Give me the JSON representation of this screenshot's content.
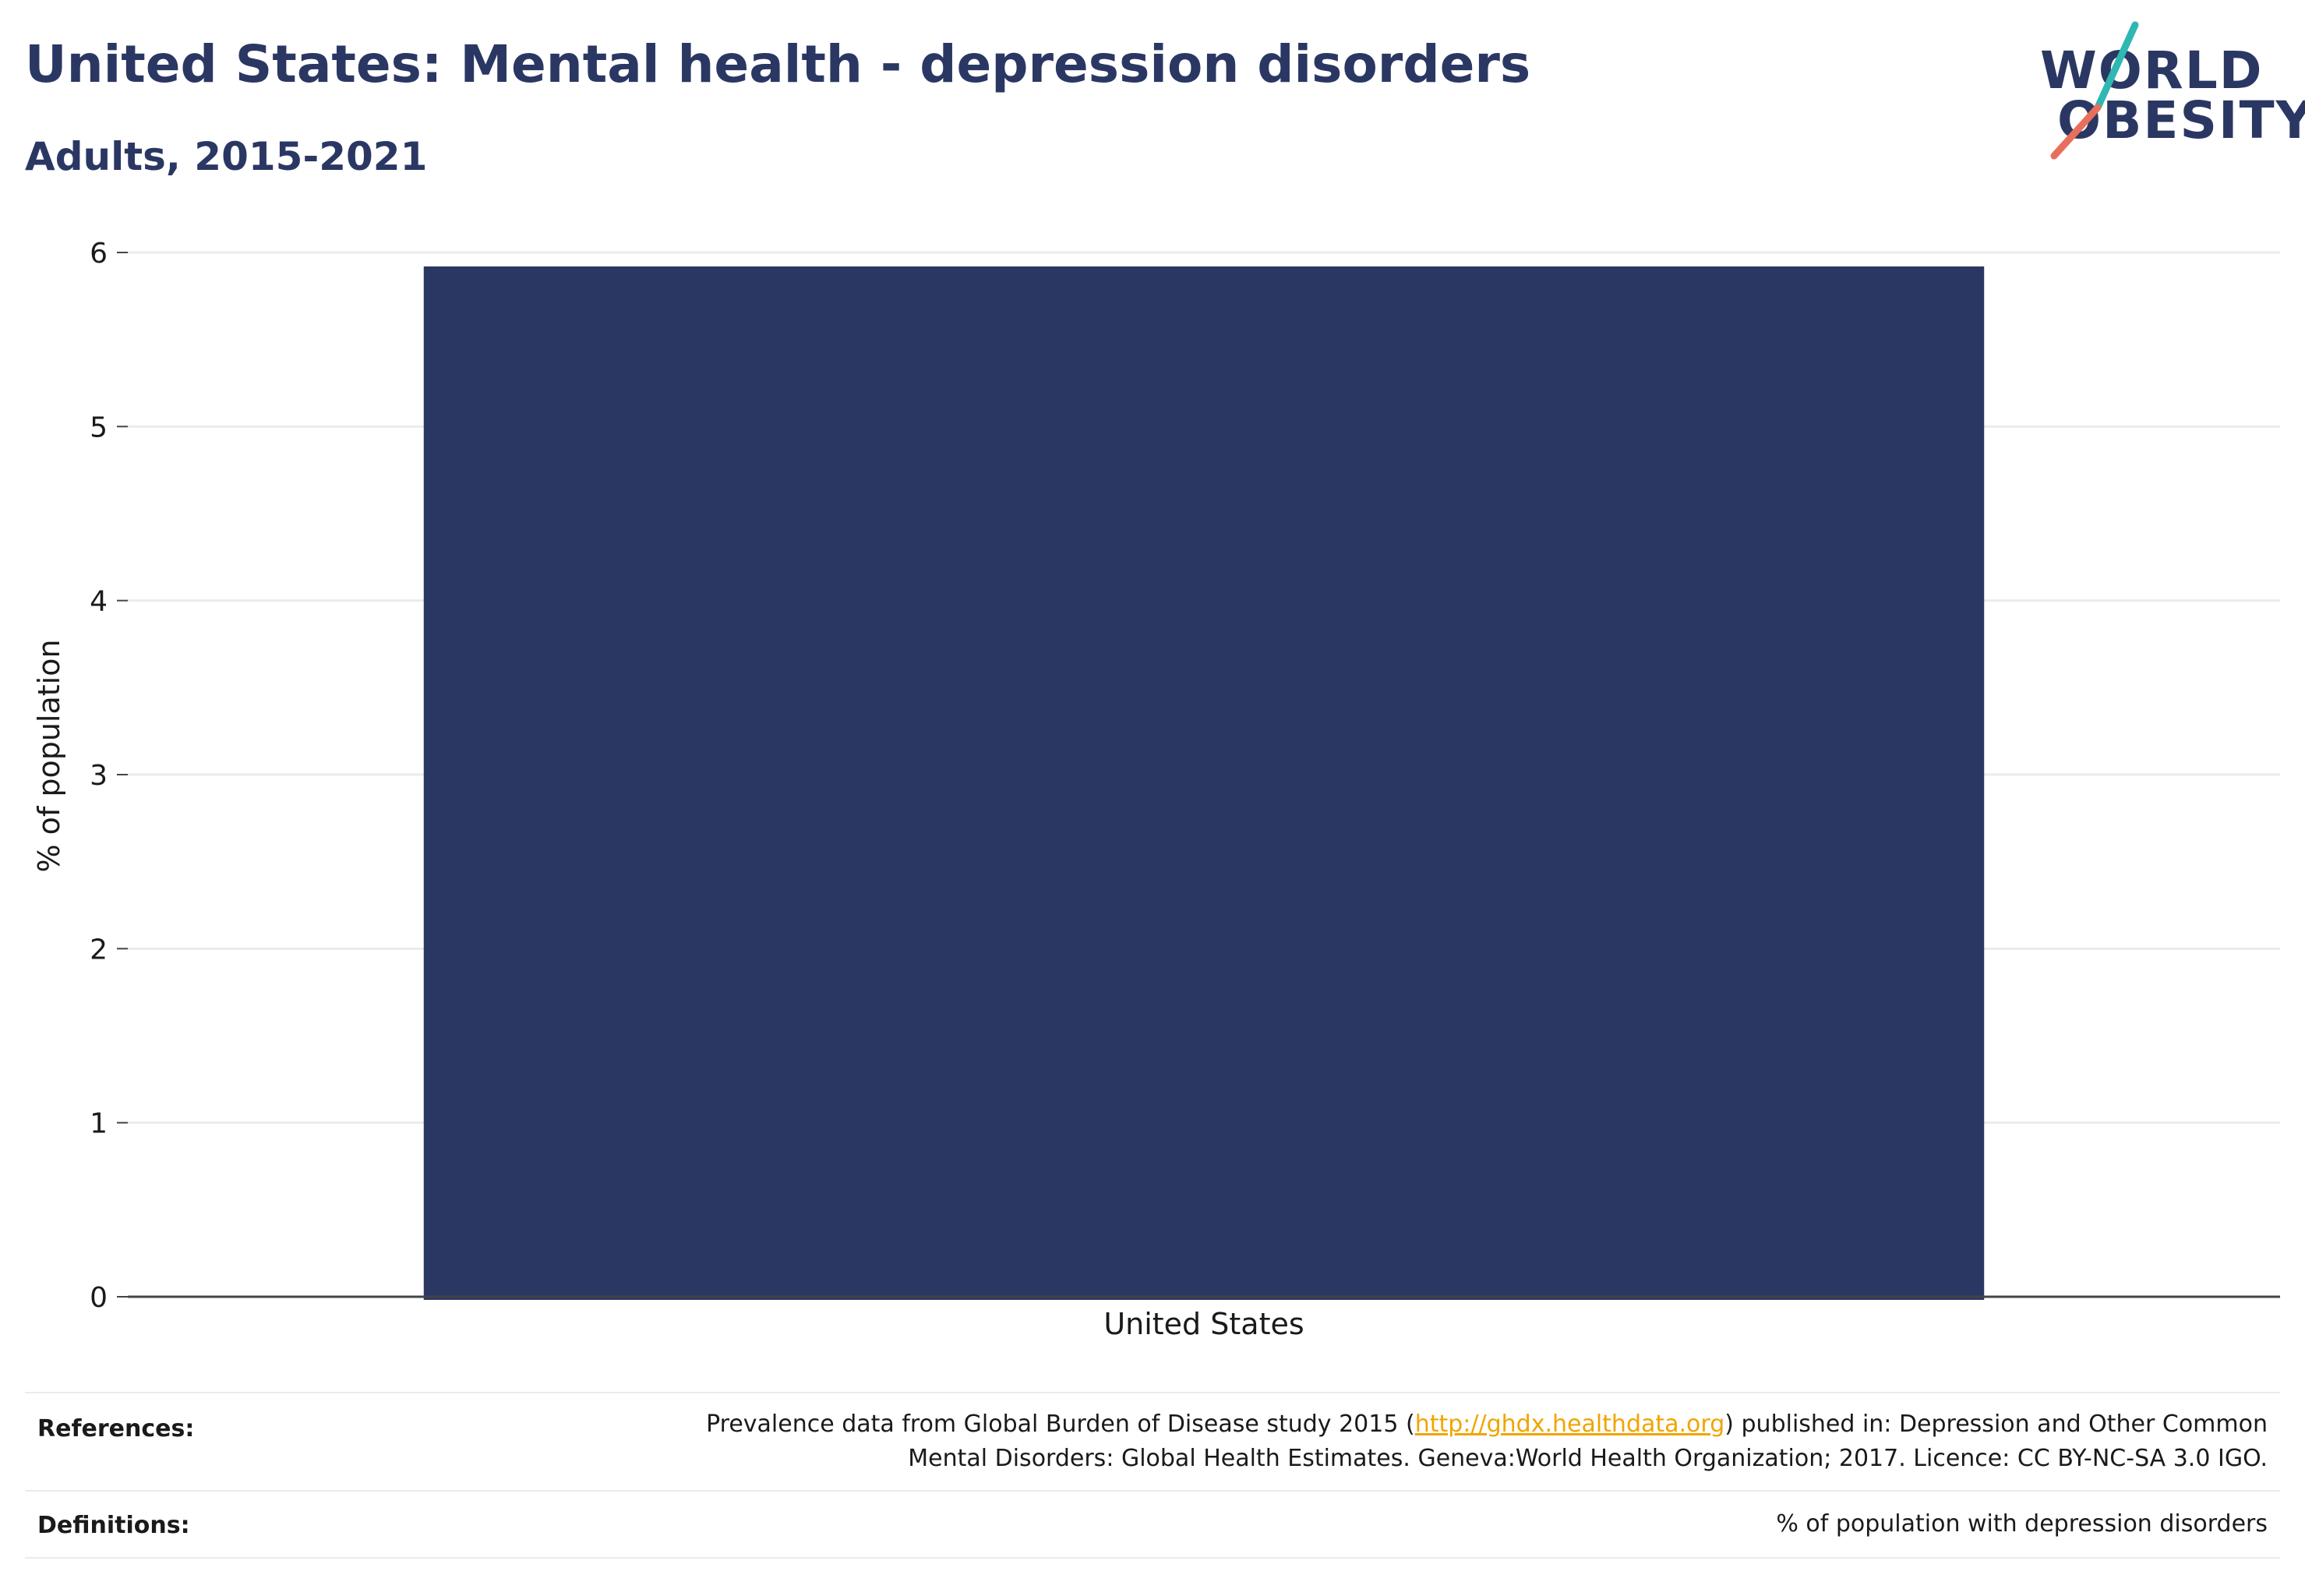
{
  "title": "United States: Mental health - depression disorders",
  "subtitle": "Adults, 2015-2021",
  "logo": {
    "line1": "WORLD",
    "line2": "OBESITY"
  },
  "colors": {
    "bar": "#2b3763",
    "title": "#2b3763",
    "accent_teal": "#2fb7b3",
    "accent_coral": "#e8705a",
    "link": "#f0a500"
  },
  "chart_data": {
    "type": "bar",
    "categories": [
      "United States"
    ],
    "values": [
      5.92
    ],
    "ylabel": "% of population",
    "ylim": [
      0,
      6
    ],
    "yticks": [
      "0",
      "1",
      "2",
      "3",
      "4",
      "5",
      "6"
    ],
    "grid": true
  },
  "footer": {
    "references_label": "References:",
    "references_text_1": "Prevalence data from Global Burden of Disease study 2015 (",
    "references_link": "http://ghdx.healthdata.org",
    "references_text_2": ") published in: Depression and Other Common",
    "references_text_3": "Mental Disorders: Global Health Estimates. Geneva:World Health Organization; 2017. Licence: CC BY-NC-SA 3.0 IGO.",
    "definitions_label": "Definitions:",
    "definitions_text": "% of population with depression disorders"
  }
}
